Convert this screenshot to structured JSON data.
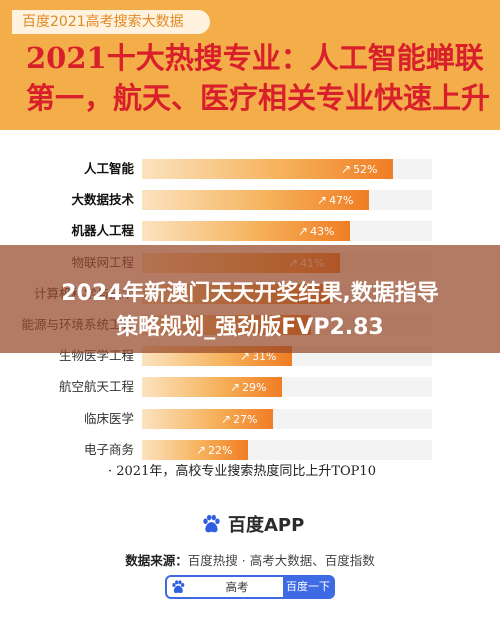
{
  "header": {
    "tag": "百度2021高考搜索大数据",
    "title_line1": "2021十大热搜专业：人工智能蝉联",
    "title_line2": "第一，航天、医疗相关专业快速上升"
  },
  "banner": {
    "line1": "2024年新澳门天天开奖结果,数据指导",
    "line2": "策略规划_强劲版FVP2.83"
  },
  "chart_data": {
    "type": "bar",
    "orientation": "horizontal",
    "categories": [
      "人工智能",
      "大数据技术",
      "机器人工程",
      "物联网工程",
      "计算机科学与技术",
      "能源与环境系统工程",
      "生物医学工程",
      "航空航天工程",
      "临床医学",
      "电子商务"
    ],
    "values": [
      52,
      47,
      43,
      41,
      39,
      35,
      31,
      29,
      27,
      22
    ],
    "value_labels": [
      "52%",
      "47%",
      "43%",
      "41%",
      "",
      "",
      "31%",
      "29%",
      "27%",
      "22%"
    ],
    "xlim": [
      0,
      60
    ],
    "grid": false,
    "legend": "none",
    "bold_categories": 3,
    "footnote": "· 2021年，高校专业搜索热度同比上升TOP10"
  },
  "footer": {
    "brand": "百度APP",
    "source_label": "数据来源：",
    "source_text": "百度热搜 · 高考大数据、百度指数",
    "search_query": "高考",
    "search_button": "百度一下"
  },
  "colors": {
    "header_bg": "#f3ae49",
    "title": "#d91f2b",
    "bar_end": "#f07d24",
    "search_blue": "#3e6be4"
  }
}
